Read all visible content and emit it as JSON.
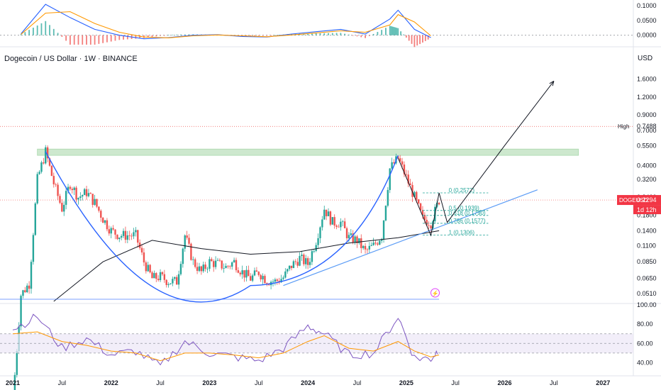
{
  "header": {
    "symbol_title": "Dogecoin / US Dollar · 1W · BINANCE",
    "currency": "USD"
  },
  "colors": {
    "up": "#26a69a",
    "down": "#ef5350",
    "blue_line": "#2962ff",
    "orange_line": "#ff9800",
    "sma": "#131722",
    "resistance_zone": "#a5d6a7",
    "rsi_band": "#ede7f6",
    "rsi_line": "#7e57c2",
    "price_badge": "#f23645"
  },
  "chart_data": [
    {
      "type": "line",
      "panel": "macd",
      "y_ticks": [
        "0.1000",
        "0.0500",
        "0.0000"
      ],
      "ylim": [
        -0.02,
        0.11
      ],
      "x": [
        "2021-02",
        "2021-05",
        "2021-08",
        "2021-11",
        "2022-02",
        "2022-05",
        "2022-08",
        "2022-11",
        "2023-02",
        "2023-05",
        "2023-08",
        "2023-11",
        "2024-02",
        "2024-05",
        "2024-08",
        "2024-11",
        "2024-12",
        "2025-02",
        "2025-04"
      ],
      "series": [
        {
          "values": [
            0.005,
            0.105,
            0.06,
            0.02,
            0.0,
            -0.012,
            -0.008,
            0.0,
            0.002,
            -0.004,
            -0.006,
            0.004,
            0.012,
            0.02,
            0.004,
            0.055,
            0.085,
            0.02,
            -0.008
          ]
        },
        {
          "values": [
            0.003,
            0.075,
            0.08,
            0.04,
            0.01,
            -0.006,
            -0.009,
            -0.002,
            0.001,
            -0.002,
            -0.005,
            0.001,
            0.008,
            0.015,
            0.01,
            0.035,
            0.07,
            0.045,
            -0.002
          ]
        }
      ]
    },
    {
      "type": "candlestick",
      "panel": "price",
      "y_scale": "log",
      "ylim": [
        0.045,
        2.0
      ],
      "y_ticks": [
        "1.6000",
        "1.2000",
        "0.9000",
        "0.7000",
        "0.5500",
        "0.4000",
        "0.3200",
        "0.2400",
        "0.1800",
        "0.1400",
        "0.1100",
        "0.0850",
        "0.0650",
        "0.0510"
      ],
      "x_ticks": [
        "2021",
        "Jul",
        "2022",
        "Jul",
        "2023",
        "Jul",
        "2024",
        "Jul",
        "2025",
        "Jul",
        "2026",
        "Jul",
        "2027"
      ],
      "high_label": "High",
      "high_value": "0.7488",
      "last_symbol": "DOGEUSD",
      "last_price": "0.2294",
      "countdown": "1d 12h",
      "resistance_zone": [
        0.47,
        0.52
      ],
      "fib_levels": [
        {
          "label": "0 (0.2572)",
          "value": 0.2572
        },
        {
          "label": "0.5 (0.1939)",
          "value": 0.1939
        },
        {
          "label": "0.618 (0.1790)",
          "value": 0.179
        },
        {
          "label": "0.786 (0.1577)",
          "value": 0.1577
        },
        {
          "label": "1 (0.1306)",
          "value": 0.1306
        }
      ],
      "closes": [
        {
          "t": "2021-01",
          "v": 0.009
        },
        {
          "t": "2021-02",
          "v": 0.05
        },
        {
          "t": "2021-03",
          "v": 0.06
        },
        {
          "t": "2021-04",
          "v": 0.32
        },
        {
          "t": "2021-05",
          "v": 0.5
        },
        {
          "t": "2021-06",
          "v": 0.3
        },
        {
          "t": "2021-07",
          "v": 0.2
        },
        {
          "t": "2021-08",
          "v": 0.3
        },
        {
          "t": "2021-09",
          "v": 0.24
        },
        {
          "t": "2021-10",
          "v": 0.26
        },
        {
          "t": "2021-11",
          "v": 0.22
        },
        {
          "t": "2021-12",
          "v": 0.17
        },
        {
          "t": "2022-01",
          "v": 0.14
        },
        {
          "t": "2022-02",
          "v": 0.13
        },
        {
          "t": "2022-03",
          "v": 0.13
        },
        {
          "t": "2022-04",
          "v": 0.13
        },
        {
          "t": "2022-05",
          "v": 0.085
        },
        {
          "t": "2022-06",
          "v": 0.065
        },
        {
          "t": "2022-07",
          "v": 0.067
        },
        {
          "t": "2022-08",
          "v": 0.062
        },
        {
          "t": "2022-09",
          "v": 0.062
        },
        {
          "t": "2022-10",
          "v": 0.13
        },
        {
          "t": "2022-11",
          "v": 0.085
        },
        {
          "t": "2022-12",
          "v": 0.072
        },
        {
          "t": "2023-01",
          "v": 0.085
        },
        {
          "t": "2023-02",
          "v": 0.082
        },
        {
          "t": "2023-03",
          "v": 0.078
        },
        {
          "t": "2023-04",
          "v": 0.085
        },
        {
          "t": "2023-05",
          "v": 0.072
        },
        {
          "t": "2023-06",
          "v": 0.065
        },
        {
          "t": "2023-07",
          "v": 0.072
        },
        {
          "t": "2023-08",
          "v": 0.063
        },
        {
          "t": "2023-09",
          "v": 0.062
        },
        {
          "t": "2023-10",
          "v": 0.066
        },
        {
          "t": "2023-11",
          "v": 0.08
        },
        {
          "t": "2023-12",
          "v": 0.09
        },
        {
          "t": "2024-01",
          "v": 0.082
        },
        {
          "t": "2024-02",
          "v": 0.12
        },
        {
          "t": "2024-03",
          "v": 0.2
        },
        {
          "t": "2024-04",
          "v": 0.16
        },
        {
          "t": "2024-05",
          "v": 0.16
        },
        {
          "t": "2024-06",
          "v": 0.125
        },
        {
          "t": "2024-07",
          "v": 0.12
        },
        {
          "t": "2024-08",
          "v": 0.1
        },
        {
          "t": "2024-09",
          "v": 0.11
        },
        {
          "t": "2024-10",
          "v": 0.13
        },
        {
          "t": "2024-11",
          "v": 0.38
        },
        {
          "t": "2024-12",
          "v": 0.45
        },
        {
          "t": "2025-01",
          "v": 0.33
        },
        {
          "t": "2025-02",
          "v": 0.24
        },
        {
          "t": "2025-03",
          "v": 0.17
        },
        {
          "t": "2025-04",
          "v": 0.16
        },
        {
          "t": "2025-05",
          "v": 0.2294
        }
      ],
      "sma_long": [
        {
          "t": "2021-06",
          "v": 0.045
        },
        {
          "t": "2021-12",
          "v": 0.085
        },
        {
          "t": "2022-06",
          "v": 0.12
        },
        {
          "t": "2022-12",
          "v": 0.105
        },
        {
          "t": "2023-06",
          "v": 0.096
        },
        {
          "t": "2023-12",
          "v": 0.1
        },
        {
          "t": "2024-06",
          "v": 0.115
        },
        {
          "t": "2024-12",
          "v": 0.125
        },
        {
          "t": "2025-05",
          "v": 0.14
        }
      ],
      "projection": [
        {
          "t": "2025-05",
          "v": 0.2572
        },
        {
          "t": "2025-06",
          "v": 0.16
        },
        {
          "t": "2026-01",
          "v": 0.55
        },
        {
          "t": "2026-07",
          "v": 1.55
        }
      ]
    },
    {
      "type": "line",
      "panel": "rsi",
      "y_ticks": [
        "100.00",
        "80.00",
        "60.00",
        "40.00"
      ],
      "ylim": [
        30,
        100
      ],
      "band": [
        50,
        70
      ],
      "x": [
        "2021-01",
        "2021-04",
        "2021-07",
        "2021-10",
        "2022-01",
        "2022-04",
        "2022-07",
        "2022-10",
        "2023-01",
        "2023-04",
        "2023-07",
        "2023-10",
        "2024-01",
        "2024-03",
        "2024-06",
        "2024-09",
        "2024-12",
        "2025-02",
        "2025-04",
        "2025-05"
      ],
      "series": [
        {
          "values": [
            75,
            88,
            55,
            65,
            48,
            52,
            36,
            62,
            50,
            46,
            42,
            55,
            78,
            70,
            48,
            50,
            88,
            45,
            44,
            54
          ]
        },
        {
          "values": [
            70,
            72,
            62,
            58,
            52,
            50,
            42,
            50,
            50,
            48,
            45,
            50,
            62,
            68,
            55,
            52,
            62,
            52,
            46,
            48
          ]
        }
      ]
    }
  ]
}
